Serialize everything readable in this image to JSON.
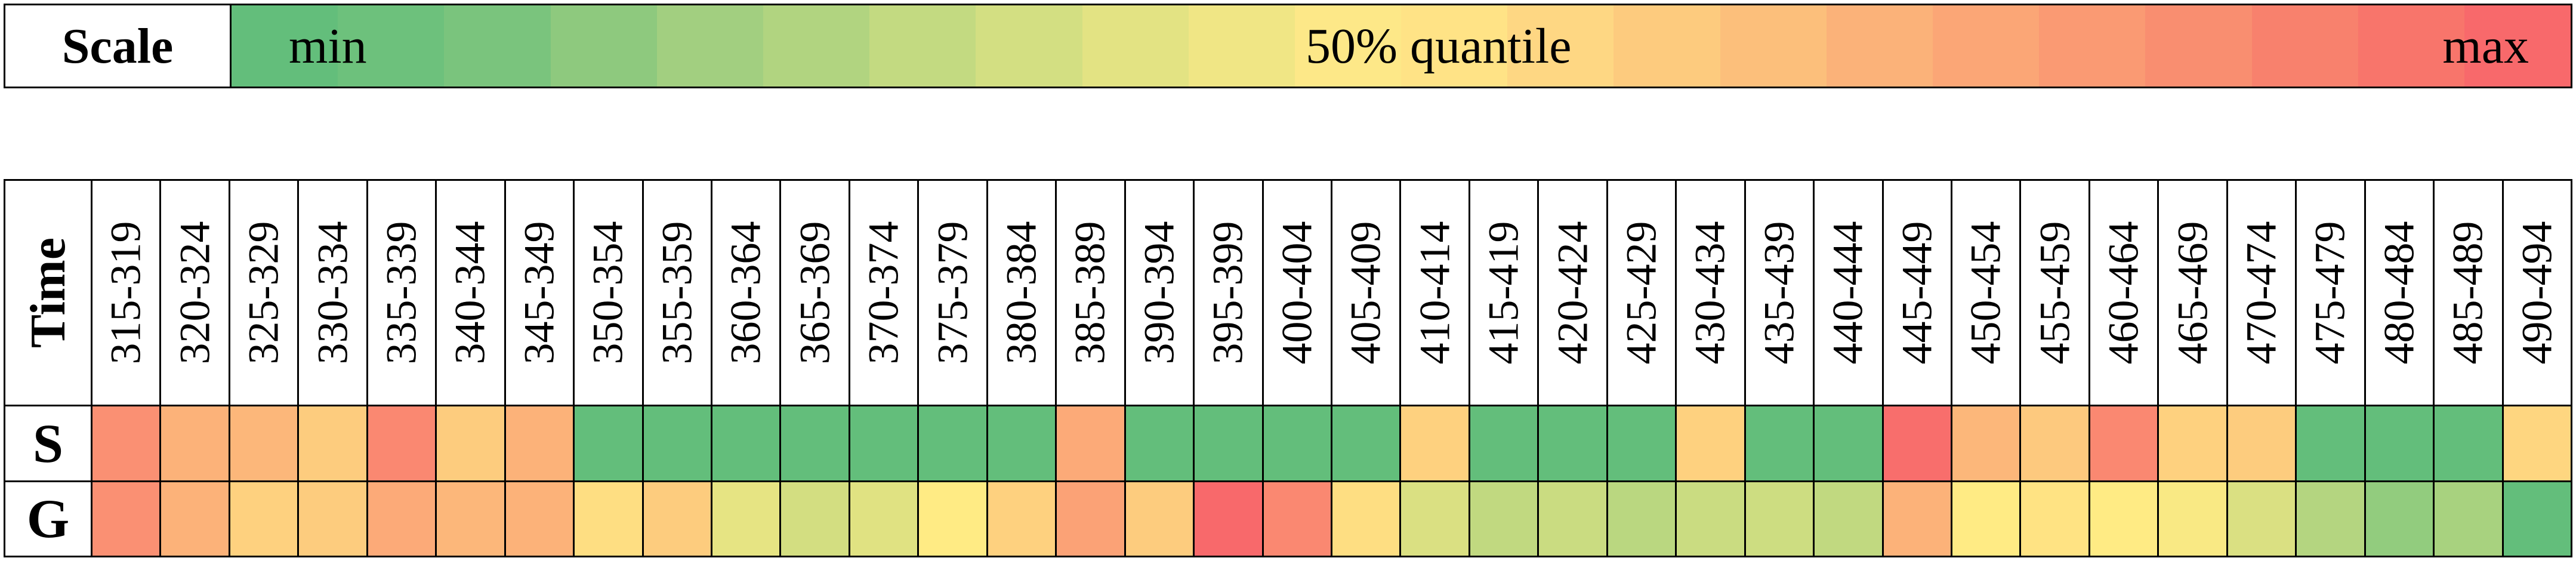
{
  "chart_data": {
    "type": "heatmap",
    "scale": {
      "label": "Scale",
      "min_label": "min",
      "mid_label": "50% quantile",
      "max_label": "max",
      "colors": [
        "#63be7b",
        "#6dc17c",
        "#7ac47d",
        "#8ec97e",
        "#a2cf80",
        "#b1d480",
        "#c3da81",
        "#d3df82",
        "#e3e383",
        "#f0e685",
        "#fde888",
        "#ffe386",
        "#fed783",
        "#fdcb7e",
        "#fcbf7b",
        "#fbb279",
        "#fba676",
        "#fa9a73",
        "#f98e70",
        "#f8816d",
        "#f8756b",
        "#f8696b"
      ]
    },
    "y_axis_title": "Time",
    "categories": [
      "315-319",
      "320-324",
      "325-329",
      "330-334",
      "335-339",
      "340-344",
      "345-349",
      "350-354",
      "355-359",
      "360-364",
      "365-369",
      "370-374",
      "375-379",
      "380-384",
      "385-389",
      "390-394",
      "395-399",
      "400-404",
      "405-409",
      "410-414",
      "415-419",
      "420-424",
      "425-429",
      "430-434",
      "435-439",
      "440-444",
      "445-449",
      "450-454",
      "455-459",
      "460-464",
      "465-469",
      "470-474",
      "475-479",
      "480-484",
      "485-489",
      "490-494"
    ],
    "value_scale": "0 = min, 0.5 = 50% quantile, 1 = max",
    "series": [
      {
        "name": "S",
        "values": [
          0.85,
          0.72,
          0.7,
          0.62,
          0.88,
          0.62,
          0.72,
          0.0,
          0.0,
          0.0,
          0.0,
          0.0,
          0.0,
          0.0,
          0.75,
          0.0,
          0.0,
          0.0,
          0.0,
          0.6,
          0.0,
          0.0,
          0.0,
          0.6,
          0.0,
          0.0,
          0.98,
          0.7,
          0.63,
          0.88,
          0.6,
          0.62,
          0.0,
          0.0,
          0.0,
          0.58
        ]
      },
      {
        "name": "G",
        "values": [
          0.85,
          0.72,
          0.6,
          0.62,
          0.75,
          0.7,
          0.72,
          0.55,
          0.62,
          0.42,
          0.36,
          0.4,
          0.5,
          0.6,
          0.78,
          0.62,
          1.0,
          0.88,
          0.55,
          0.38,
          0.3,
          0.33,
          0.28,
          0.33,
          0.34,
          0.3,
          0.72,
          0.5,
          0.53,
          0.5,
          0.48,
          0.38,
          0.26,
          0.15,
          0.22,
          0.0
        ]
      }
    ]
  }
}
